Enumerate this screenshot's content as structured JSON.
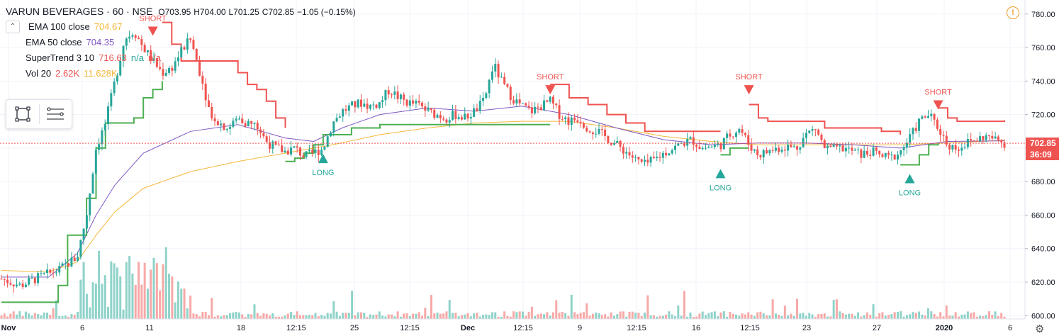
{
  "symbol": {
    "name": "VARUN BEVERAGES · 60 · NSE",
    "open_label": "O",
    "open": "703.95",
    "high_label": "H",
    "high": "704.00",
    "low_label": "L",
    "low": "701.25",
    "close_label": "C",
    "close": "702.85",
    "change": "−1.05 (−0.15%)"
  },
  "indicators": [
    {
      "label": "EMA 100 close",
      "value": "704.67",
      "color": "#f5b73b"
    },
    {
      "label": "EMA 50 close",
      "value": "704.35",
      "color": "#7e57c2"
    },
    {
      "label": "SuperTrend 3 10",
      "value": "716.63",
      "value2": "n/a",
      "value3": "n/a",
      "color": "#ef5350",
      "color2": "#26a69a"
    },
    {
      "label": "Vol 20",
      "value": "2.62K",
      "value2": "11.628K",
      "color": "#ef5350"
    }
  ],
  "price_axis": {
    "ticks": [
      "780.00",
      "760.00",
      "740.00",
      "720.00",
      "700.00",
      "680.00",
      "660.00",
      "640.00",
      "620.00",
      "600.00"
    ],
    "last_price": "702.85",
    "countdown": "36:09",
    "last_price_color": "#ef5350"
  },
  "time_axis": {
    "ticks": [
      "Nov",
      "6",
      "11",
      "18",
      "12:15",
      "25",
      "12:15",
      "Dec",
      "12:15",
      "9",
      "12:15",
      "16",
      "12:15",
      "23",
      "27",
      "2020",
      "6"
    ]
  },
  "signals": [
    {
      "type": "SHORT",
      "price": 770
    },
    {
      "type": "LONG",
      "price": 694
    },
    {
      "type": "SHORT",
      "price": 735
    },
    {
      "type": "LONG",
      "price": 685
    },
    {
      "type": "SHORT",
      "price": 735
    },
    {
      "type": "LONG",
      "price": 682
    },
    {
      "type": "SHORT",
      "price": 726
    }
  ],
  "signal_labels": {
    "short": "SHORT",
    "long": "LONG"
  },
  "colors": {
    "up": "#26a69a",
    "down": "#ef5350",
    "ema100": "#f5b73b",
    "ema50": "#7e57c2",
    "st_up": "#4caf50",
    "st_down": "#ef5350",
    "vol_up": "#8fd3c9",
    "vol_down": "#f7a9a7"
  },
  "icons": {
    "collapse": "chevron-up-icon",
    "alert": "alert-icon",
    "settings": "gear-icon",
    "rect": "rectangle-tool-icon",
    "lines": "horizontal-lines-icon"
  },
  "chart_data": {
    "type": "candlestick",
    "ylim": [
      598,
      785
    ],
    "x_tick_labels": [
      "Nov",
      "6",
      "11",
      "18",
      "12:15",
      "25",
      "12:15",
      "Dec",
      "12:15",
      "9",
      "12:15",
      "16",
      "12:15",
      "23",
      "27",
      "2020",
      "6"
    ],
    "price_path": [
      [
        0,
        622
      ],
      [
        2,
        618
      ],
      [
        4,
        623
      ],
      [
        6,
        627
      ],
      [
        8,
        635
      ],
      [
        9,
        660
      ],
      [
        10,
        700
      ],
      [
        11,
        715
      ],
      [
        12,
        740
      ],
      [
        13,
        765
      ],
      [
        14,
        770
      ],
      [
        15,
        760
      ],
      [
        16,
        752
      ],
      [
        17,
        745
      ],
      [
        18,
        748
      ],
      [
        19,
        758
      ],
      [
        20,
        765
      ],
      [
        21,
        745
      ],
      [
        22,
        722
      ],
      [
        23,
        715
      ],
      [
        24,
        712
      ],
      [
        25,
        718
      ],
      [
        26,
        715
      ],
      [
        27,
        713
      ],
      [
        28,
        704
      ],
      [
        29,
        700
      ],
      [
        30,
        698
      ],
      [
        31,
        700
      ],
      [
        32,
        695
      ],
      [
        33,
        697
      ],
      [
        34,
        700
      ],
      [
        35,
        715
      ],
      [
        36,
        722
      ],
      [
        37,
        725
      ],
      [
        38,
        727
      ],
      [
        39,
        725
      ],
      [
        40,
        727
      ],
      [
        41,
        735
      ],
      [
        42,
        730
      ],
      [
        43,
        727
      ],
      [
        44,
        726
      ],
      [
        45,
        722
      ],
      [
        46,
        720
      ],
      [
        47,
        718
      ],
      [
        48,
        720
      ],
      [
        49,
        718
      ],
      [
        50,
        722
      ],
      [
        51,
        728
      ],
      [
        52,
        750
      ],
      [
        53,
        738
      ],
      [
        54,
        730
      ],
      [
        55,
        725
      ],
      [
        56,
        722
      ],
      [
        57,
        725
      ],
      [
        58,
        728
      ],
      [
        59,
        720
      ],
      [
        60,
        716
      ],
      [
        61,
        718
      ],
      [
        62,
        712
      ],
      [
        63,
        710
      ],
      [
        64,
        706
      ],
      [
        65,
        702
      ],
      [
        66,
        698
      ],
      [
        67,
        693
      ],
      [
        68,
        690
      ],
      [
        69,
        693
      ],
      [
        70,
        697
      ],
      [
        71,
        700
      ],
      [
        72,
        703
      ],
      [
        73,
        705
      ],
      [
        74,
        700
      ],
      [
        75,
        701
      ],
      [
        76,
        702
      ],
      [
        77,
        708
      ],
      [
        78,
        712
      ],
      [
        79,
        702
      ],
      [
        80,
        696
      ],
      [
        81,
        698
      ],
      [
        82,
        700
      ],
      [
        83,
        701
      ],
      [
        84,
        700
      ],
      [
        85,
        708
      ],
      [
        86,
        712
      ],
      [
        87,
        700
      ],
      [
        88,
        699
      ],
      [
        89,
        700
      ],
      [
        90,
        698
      ],
      [
        91,
        696
      ],
      [
        92,
        698
      ],
      [
        93,
        695
      ],
      [
        94,
        694
      ],
      [
        95,
        698
      ],
      [
        96,
        706
      ],
      [
        97,
        716
      ],
      [
        98,
        720
      ],
      [
        99,
        712
      ],
      [
        100,
        702
      ],
      [
        101,
        700
      ],
      [
        102,
        703
      ],
      [
        103,
        705
      ],
      [
        104,
        707
      ],
      [
        105,
        705
      ],
      [
        106,
        703
      ]
    ],
    "ema100": [
      [
        0,
        627
      ],
      [
        5,
        626
      ],
      [
        8,
        632
      ],
      [
        10,
        648
      ],
      [
        12,
        662
      ],
      [
        15,
        676
      ],
      [
        20,
        686
      ],
      [
        25,
        692
      ],
      [
        30,
        697
      ],
      [
        35,
        702
      ],
      [
        40,
        708
      ],
      [
        45,
        712
      ],
      [
        50,
        715
      ],
      [
        55,
        716
      ],
      [
        60,
        716
      ],
      [
        65,
        712
      ],
      [
        70,
        707
      ],
      [
        75,
        704
      ],
      [
        80,
        702
      ],
      [
        85,
        702
      ],
      [
        90,
        702
      ],
      [
        95,
        702
      ],
      [
        100,
        703
      ],
      [
        106,
        704.67
      ]
    ],
    "ema50": [
      [
        0,
        623
      ],
      [
        5,
        623
      ],
      [
        8,
        637
      ],
      [
        10,
        660
      ],
      [
        12,
        678
      ],
      [
        15,
        697
      ],
      [
        20,
        710
      ],
      [
        25,
        714
      ],
      [
        30,
        706
      ],
      [
        33,
        704
      ],
      [
        36,
        712
      ],
      [
        40,
        720
      ],
      [
        45,
        724
      ],
      [
        50,
        722
      ],
      [
        55,
        725
      ],
      [
        60,
        720
      ],
      [
        65,
        712
      ],
      [
        70,
        705
      ],
      [
        75,
        702
      ],
      [
        80,
        703
      ],
      [
        85,
        703
      ],
      [
        90,
        702
      ],
      [
        95,
        700
      ],
      [
        100,
        704
      ],
      [
        106,
        704.35
      ]
    ],
    "supertrend": [
      {
        "dir": "up",
        "pts": [
          [
            0,
            608
          ],
          [
            5,
            608
          ],
          [
            6,
            618
          ],
          [
            7,
            648
          ],
          [
            8,
            648
          ],
          [
            9,
            670
          ],
          [
            10,
            700
          ],
          [
            11,
            715
          ],
          [
            14,
            718
          ],
          [
            15,
            730
          ],
          [
            16,
            735
          ],
          [
            17,
            740
          ]
        ]
      },
      {
        "dir": "down",
        "pts": [
          [
            17,
            775
          ],
          [
            18,
            762
          ],
          [
            19,
            752
          ],
          [
            24,
            752
          ],
          [
            25,
            745
          ],
          [
            26,
            738
          ],
          [
            27,
            735
          ],
          [
            28,
            728
          ],
          [
            29,
            718
          ],
          [
            30,
            712
          ]
        ]
      },
      {
        "dir": "up",
        "pts": [
          [
            30,
            692
          ],
          [
            31,
            694
          ],
          [
            32,
            697
          ],
          [
            33,
            702
          ],
          [
            34,
            708
          ],
          [
            37,
            712
          ],
          [
            40,
            714
          ],
          [
            58,
            714
          ]
        ]
      },
      {
        "dir": "down",
        "pts": [
          [
            58,
            738
          ],
          [
            60,
            730
          ],
          [
            62,
            726
          ],
          [
            64,
            720
          ],
          [
            66,
            715
          ],
          [
            68,
            710
          ],
          [
            75,
            710
          ],
          [
            76,
            710
          ]
        ]
      },
      {
        "dir": "up",
        "pts": [
          [
            76,
            696
          ],
          [
            77,
            700
          ],
          [
            79,
            700
          ]
        ]
      },
      {
        "dir": "down",
        "pts": [
          [
            79,
            726
          ],
          [
            80,
            718
          ],
          [
            81,
            716
          ],
          [
            86,
            716
          ],
          [
            87,
            712
          ],
          [
            93,
            710
          ],
          [
            95,
            708
          ]
        ]
      },
      {
        "dir": "up",
        "pts": [
          [
            95,
            690
          ],
          [
            96,
            690
          ],
          [
            97,
            696
          ],
          [
            98,
            702
          ],
          [
            99,
            703
          ]
        ]
      },
      {
        "dir": "down",
        "pts": [
          [
            99,
            724
          ],
          [
            100,
            718
          ],
          [
            101,
            716
          ],
          [
            106,
            716.63
          ]
        ]
      }
    ]
  }
}
